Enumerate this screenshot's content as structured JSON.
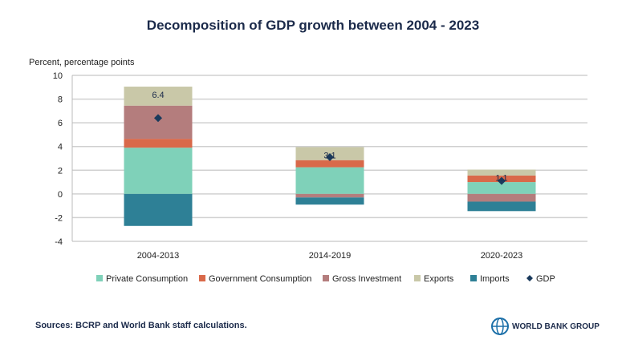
{
  "chart_data": {
    "type": "bar",
    "stacked": true,
    "title": "Decomposition of GDP growth between 2004 - 2023",
    "ylabel": "Percent, percentage points",
    "ylim": [
      -4,
      10
    ],
    "yticks": [
      -4,
      -2,
      0,
      2,
      4,
      6,
      8,
      10
    ],
    "grid": true,
    "legend": "bottom",
    "categories": [
      "2004-2013",
      "2014-2019",
      "2020-2023"
    ],
    "series": [
      {
        "name": "Private Consumption",
        "color": "#7fd1b9",
        "values": [
          3.9,
          2.25,
          1.0
        ]
      },
      {
        "name": "Government Consumption",
        "color": "#d9694a",
        "values": [
          0.75,
          0.6,
          0.55
        ]
      },
      {
        "name": "Gross Investment",
        "color": "#b47d7d",
        "values": [
          2.8,
          -0.3,
          -0.65
        ]
      },
      {
        "name": "Exports",
        "color": "#c9c8a8",
        "values": [
          1.6,
          1.1,
          0.5
        ]
      },
      {
        "name": "Imports",
        "color": "#2e8096",
        "values": [
          -2.7,
          -0.6,
          -0.8
        ]
      }
    ],
    "line_series": {
      "name": "GDP",
      "color": "#1a3a5c",
      "marker": "diamond",
      "values": [
        6.4,
        3.1,
        1.1
      ],
      "labels": [
        "6.4",
        "3.1",
        "1.1"
      ]
    }
  },
  "source": "Sources: BCRP and World Bank staff calculations.",
  "logo_text": "WORLD BANK GROUP"
}
